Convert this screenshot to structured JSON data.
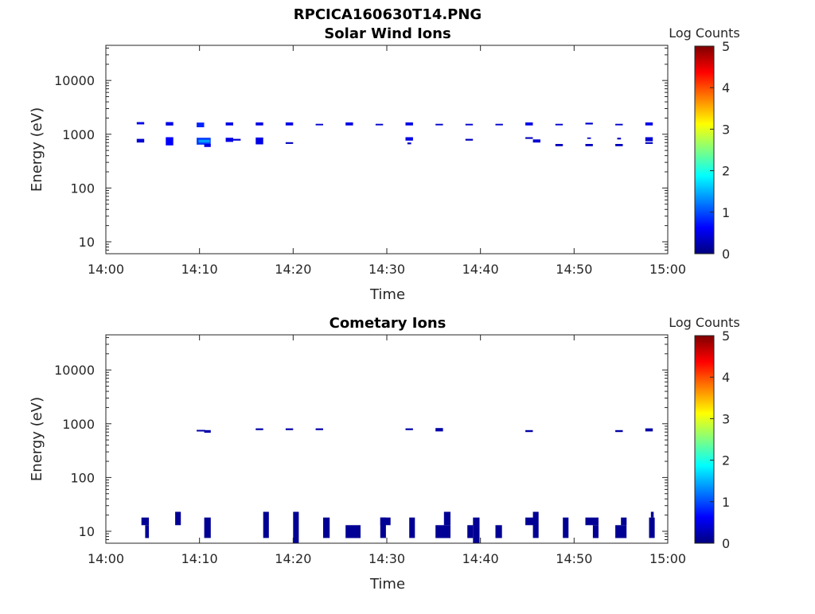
{
  "figure_title": "RPCICA160630T14.PNG",
  "colorbar": {
    "label": "Log Counts",
    "ticks": [
      "0",
      "1",
      "2",
      "3",
      "4",
      "5"
    ],
    "range": [
      0,
      5
    ],
    "colormap": "jet"
  },
  "colors": {
    "dark_navy": "#00008f",
    "blue": "#0000ff",
    "sky": "#1f8fff"
  },
  "chart_data": [
    {
      "type": "heatmap",
      "title": "Solar Wind Ions",
      "xlabel": "Time",
      "ylabel": "Energy (eV)",
      "xticks": [
        "14:00",
        "14:10",
        "14:20",
        "14:30",
        "14:40",
        "14:50",
        "15:00"
      ],
      "xlim_minutes": [
        0,
        60
      ],
      "yticks": [
        "10",
        "100",
        "1000",
        "10000"
      ],
      "ylim": [
        6,
        45000
      ],
      "yscale": "log",
      "cells": [
        {
          "t0": 3.3,
          "t1": 4.1,
          "e0": 1520,
          "e1": 1680,
          "log_counts": 0.5
        },
        {
          "t0": 3.3,
          "t1": 4.1,
          "e0": 700,
          "e1": 820,
          "log_counts": 0.4
        },
        {
          "t0": 6.4,
          "t1": 7.2,
          "e0": 1450,
          "e1": 1680,
          "log_counts": 0.5
        },
        {
          "t0": 6.4,
          "t1": 7.2,
          "e0": 620,
          "e1": 880,
          "log_counts": 0.6
        },
        {
          "t0": 9.7,
          "t1": 10.5,
          "e0": 1350,
          "e1": 1650,
          "log_counts": 0.8
        },
        {
          "t0": 9.7,
          "t1": 11.2,
          "e0": 640,
          "e1": 860,
          "log_counts": 0.9
        },
        {
          "t0": 9.9,
          "t1": 11.1,
          "e0": 700,
          "e1": 790,
          "log_counts": 1.4
        },
        {
          "t0": 10.5,
          "t1": 11.2,
          "e0": 580,
          "e1": 660,
          "log_counts": 0.5
        },
        {
          "t0": 12.8,
          "t1": 13.6,
          "e0": 1460,
          "e1": 1660,
          "log_counts": 0.5
        },
        {
          "t0": 12.8,
          "t1": 13.6,
          "e0": 720,
          "e1": 860,
          "log_counts": 0.5
        },
        {
          "t0": 13.6,
          "t1": 14.4,
          "e0": 760,
          "e1": 820,
          "log_counts": 0.4
        },
        {
          "t0": 16.0,
          "t1": 16.8,
          "e0": 1460,
          "e1": 1660,
          "log_counts": 0.5
        },
        {
          "t0": 16.0,
          "t1": 16.8,
          "e0": 650,
          "e1": 870,
          "log_counts": 0.5
        },
        {
          "t0": 19.2,
          "t1": 20.0,
          "e0": 1460,
          "e1": 1660,
          "log_counts": 0.5
        },
        {
          "t0": 19.2,
          "t1": 20.0,
          "e0": 660,
          "e1": 710,
          "log_counts": 0.3
        },
        {
          "t0": 22.4,
          "t1": 23.2,
          "e0": 1460,
          "e1": 1560,
          "log_counts": 0.4
        },
        {
          "t0": 25.6,
          "t1": 26.4,
          "e0": 1460,
          "e1": 1660,
          "log_counts": 0.5
        },
        {
          "t0": 28.8,
          "t1": 29.6,
          "e0": 1460,
          "e1": 1560,
          "log_counts": 0.4
        },
        {
          "t0": 32.0,
          "t1": 32.8,
          "e0": 1460,
          "e1": 1660,
          "log_counts": 0.5
        },
        {
          "t0": 32.0,
          "t1": 32.8,
          "e0": 760,
          "e1": 880,
          "log_counts": 0.5
        },
        {
          "t0": 32.2,
          "t1": 32.6,
          "e0": 650,
          "e1": 700,
          "log_counts": 0.3
        },
        {
          "t0": 35.2,
          "t1": 36.0,
          "e0": 1460,
          "e1": 1560,
          "log_counts": 0.4
        },
        {
          "t0": 38.4,
          "t1": 39.2,
          "e0": 1460,
          "e1": 1560,
          "log_counts": 0.4
        },
        {
          "t0": 38.4,
          "t1": 39.2,
          "e0": 760,
          "e1": 820,
          "log_counts": 0.3
        },
        {
          "t0": 41.6,
          "t1": 42.4,
          "e0": 1460,
          "e1": 1560,
          "log_counts": 0.4
        },
        {
          "t0": 44.8,
          "t1": 45.6,
          "e0": 1460,
          "e1": 1660,
          "log_counts": 0.5
        },
        {
          "t0": 44.8,
          "t1": 45.6,
          "e0": 820,
          "e1": 880,
          "log_counts": 0.3
        },
        {
          "t0": 45.6,
          "t1": 46.4,
          "e0": 700,
          "e1": 800,
          "log_counts": 0.4
        },
        {
          "t0": 48.0,
          "t1": 48.8,
          "e0": 1460,
          "e1": 1560,
          "log_counts": 0.4
        },
        {
          "t0": 48.0,
          "t1": 48.8,
          "e0": 600,
          "e1": 660,
          "log_counts": 0.3
        },
        {
          "t0": 51.2,
          "t1": 52.0,
          "e0": 1520,
          "e1": 1640,
          "log_counts": 0.4
        },
        {
          "t0": 51.4,
          "t1": 51.8,
          "e0": 820,
          "e1": 870,
          "log_counts": 0.3
        },
        {
          "t0": 51.2,
          "t1": 52.0,
          "e0": 600,
          "e1": 660,
          "log_counts": 0.3
        },
        {
          "t0": 54.4,
          "t1": 55.2,
          "e0": 1460,
          "e1": 1560,
          "log_counts": 0.4
        },
        {
          "t0": 54.6,
          "t1": 55.0,
          "e0": 800,
          "e1": 860,
          "log_counts": 0.3
        },
        {
          "t0": 54.4,
          "t1": 55.2,
          "e0": 600,
          "e1": 660,
          "log_counts": 0.3
        },
        {
          "t0": 57.6,
          "t1": 58.4,
          "e0": 1460,
          "e1": 1660,
          "log_counts": 0.5
        },
        {
          "t0": 57.6,
          "t1": 58.4,
          "e0": 740,
          "e1": 880,
          "log_counts": 0.4
        },
        {
          "t0": 57.6,
          "t1": 58.4,
          "e0": 660,
          "e1": 710,
          "log_counts": 0.3
        }
      ]
    },
    {
      "type": "heatmap",
      "title": "Cometary Ions",
      "xlabel": "Time",
      "ylabel": "Energy (eV)",
      "xticks": [
        "14:00",
        "14:10",
        "14:20",
        "14:30",
        "14:40",
        "14:50",
        "15:00"
      ],
      "xlim_minutes": [
        0,
        60
      ],
      "yticks": [
        "10",
        "100",
        "1000",
        "10000"
      ],
      "ylim": [
        6,
        45000
      ],
      "yscale": "log",
      "cells": [
        {
          "t0": 9.7,
          "t1": 10.6,
          "e0": 720,
          "e1": 770,
          "log_counts": 0.2
        },
        {
          "t0": 10.5,
          "t1": 11.2,
          "e0": 680,
          "e1": 760,
          "log_counts": 0.2
        },
        {
          "t0": 16.0,
          "t1": 16.8,
          "e0": 760,
          "e1": 820,
          "log_counts": 0.2
        },
        {
          "t0": 19.2,
          "t1": 20.0,
          "e0": 760,
          "e1": 820,
          "log_counts": 0.2
        },
        {
          "t0": 22.4,
          "t1": 23.2,
          "e0": 760,
          "e1": 820,
          "log_counts": 0.2
        },
        {
          "t0": 32.0,
          "t1": 32.8,
          "e0": 760,
          "e1": 820,
          "log_counts": 0.2
        },
        {
          "t0": 35.2,
          "t1": 36.0,
          "e0": 720,
          "e1": 830,
          "log_counts": 0.2
        },
        {
          "t0": 44.8,
          "t1": 45.6,
          "e0": 700,
          "e1": 760,
          "log_counts": 0.2
        },
        {
          "t0": 54.4,
          "t1": 55.2,
          "e0": 700,
          "e1": 760,
          "log_counts": 0.2
        },
        {
          "t0": 57.6,
          "t1": 58.4,
          "e0": 720,
          "e1": 820,
          "log_counts": 0.2
        },
        {
          "t0": 3.8,
          "t1": 4.6,
          "e0": 13,
          "e1": 18,
          "log_counts": 0.1
        },
        {
          "t0": 4.2,
          "t1": 4.6,
          "e0": 7.5,
          "e1": 13,
          "log_counts": 0.1
        },
        {
          "t0": 7.4,
          "t1": 8.0,
          "e0": 13,
          "e1": 23,
          "log_counts": 0.1
        },
        {
          "t0": 10.5,
          "t1": 11.2,
          "e0": 7.5,
          "e1": 18,
          "log_counts": 0.1
        },
        {
          "t0": 16.8,
          "t1": 17.4,
          "e0": 7.5,
          "e1": 23,
          "log_counts": 0.1
        },
        {
          "t0": 20.0,
          "t1": 20.6,
          "e0": 5.5,
          "e1": 23,
          "log_counts": 0.1
        },
        {
          "t0": 23.2,
          "t1": 23.9,
          "e0": 7.5,
          "e1": 18,
          "log_counts": 0.1
        },
        {
          "t0": 25.6,
          "t1": 27.2,
          "e0": 7.5,
          "e1": 13,
          "log_counts": 0.1
        },
        {
          "t0": 29.3,
          "t1": 29.9,
          "e0": 7.5,
          "e1": 18,
          "log_counts": 0.1
        },
        {
          "t0": 29.3,
          "t1": 30.4,
          "e0": 13,
          "e1": 18,
          "log_counts": 0.1
        },
        {
          "t0": 32.4,
          "t1": 33.0,
          "e0": 7.5,
          "e1": 18,
          "log_counts": 0.1
        },
        {
          "t0": 35.2,
          "t1": 36.8,
          "e0": 7.5,
          "e1": 13,
          "log_counts": 0.1
        },
        {
          "t0": 36.1,
          "t1": 36.8,
          "e0": 13,
          "e1": 23,
          "log_counts": 0.1
        },
        {
          "t0": 38.6,
          "t1": 39.2,
          "e0": 7.5,
          "e1": 13,
          "log_counts": 0.1
        },
        {
          "t0": 39.2,
          "t1": 39.9,
          "e0": 5.5,
          "e1": 18,
          "log_counts": 0.1
        },
        {
          "t0": 41.6,
          "t1": 42.3,
          "e0": 7.5,
          "e1": 13,
          "log_counts": 0.1
        },
        {
          "t0": 44.8,
          "t1": 45.7,
          "e0": 13,
          "e1": 18,
          "log_counts": 0.1
        },
        {
          "t0": 45.6,
          "t1": 46.2,
          "e0": 7.5,
          "e1": 23,
          "log_counts": 0.1
        },
        {
          "t0": 48.8,
          "t1": 49.4,
          "e0": 7.5,
          "e1": 18,
          "log_counts": 0.1
        },
        {
          "t0": 51.2,
          "t1": 52.6,
          "e0": 13,
          "e1": 18,
          "log_counts": 0.1
        },
        {
          "t0": 52.0,
          "t1": 52.6,
          "e0": 7.5,
          "e1": 13,
          "log_counts": 0.1
        },
        {
          "t0": 54.4,
          "t1": 55.6,
          "e0": 7.5,
          "e1": 13,
          "log_counts": 0.1
        },
        {
          "t0": 55.0,
          "t1": 55.6,
          "e0": 13,
          "e1": 18,
          "log_counts": 0.1
        },
        {
          "t0": 58.0,
          "t1": 58.6,
          "e0": 7.5,
          "e1": 18,
          "log_counts": 0.1
        },
        {
          "t0": 58.2,
          "t1": 58.5,
          "e0": 18,
          "e1": 23,
          "log_counts": 0.1
        }
      ]
    }
  ]
}
